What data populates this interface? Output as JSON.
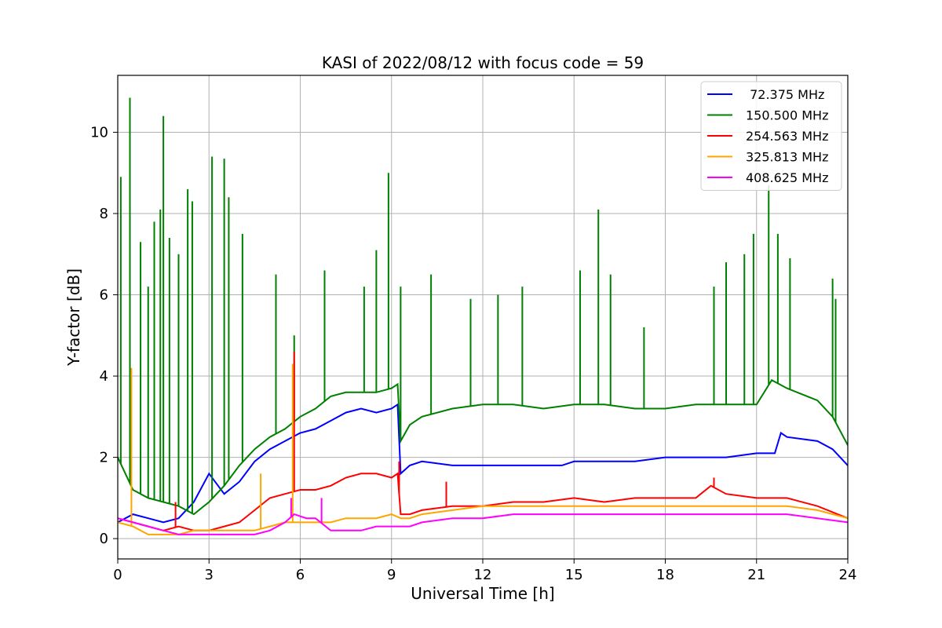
{
  "chart_data": {
    "type": "line",
    "title": "KASI of 2022/08/12 with focus code = 59",
    "xlabel": "Universal Time [h]",
    "ylabel": "Y-factor [dB]",
    "xlim": [
      0,
      24
    ],
    "ylim": [
      -0.5,
      11.4
    ],
    "xticks": [
      0,
      3,
      6,
      9,
      12,
      15,
      18,
      21,
      24
    ],
    "yticks": [
      0,
      2,
      4,
      6,
      8,
      10
    ],
    "grid": true,
    "legend_position": "top-right",
    "series": [
      {
        "name": " 72.375 MHz",
        "color": "#0000ff",
        "x": [
          0,
          0.5,
          1,
          1.5,
          2,
          2.5,
          3,
          3.5,
          4,
          4.5,
          5,
          5.5,
          6,
          6.5,
          7,
          7.5,
          8,
          8.5,
          9,
          9.2,
          9.3,
          9.6,
          10,
          11,
          12,
          13,
          14,
          14.6,
          15,
          16,
          17,
          18,
          19,
          20,
          21,
          21.6,
          21.8,
          22,
          23,
          23.5,
          24
        ],
        "y": [
          0.4,
          0.6,
          0.5,
          0.4,
          0.5,
          0.9,
          1.6,
          1.1,
          1.4,
          1.9,
          2.2,
          2.4,
          2.6,
          2.7,
          2.9,
          3.1,
          3.2,
          3.1,
          3.2,
          3.3,
          1.6,
          1.8,
          1.9,
          1.8,
          1.8,
          1.8,
          1.8,
          1.8,
          1.9,
          1.9,
          1.9,
          2.0,
          2.0,
          2.0,
          2.1,
          2.1,
          2.6,
          2.5,
          2.4,
          2.2,
          1.8
        ]
      },
      {
        "name": "150.500 MHz",
        "color": "#008000",
        "x": [
          0,
          0.5,
          1,
          1.5,
          2,
          2.5,
          3,
          3.5,
          4,
          4.5,
          5,
          5.5,
          6,
          6.5,
          7,
          7.5,
          8,
          8.5,
          9,
          9.2,
          9.3,
          9.6,
          10,
          11,
          12,
          13,
          14,
          15,
          16,
          17,
          18,
          19,
          20,
          21,
          21.5,
          22,
          23,
          23.5,
          24
        ],
        "y": [
          2.0,
          1.2,
          1.0,
          0.9,
          0.8,
          0.6,
          0.9,
          1.3,
          1.8,
          2.2,
          2.5,
          2.7,
          3.0,
          3.2,
          3.5,
          3.6,
          3.6,
          3.6,
          3.7,
          3.8,
          2.4,
          2.8,
          3.0,
          3.2,
          3.3,
          3.3,
          3.2,
          3.3,
          3.3,
          3.2,
          3.2,
          3.3,
          3.3,
          3.3,
          3.9,
          3.7,
          3.4,
          3.0,
          2.3
        ],
        "spikes": [
          {
            "x": 0.1,
            "y": 8.9
          },
          {
            "x": 0.4,
            "y": 10.85
          },
          {
            "x": 0.75,
            "y": 7.3
          },
          {
            "x": 1.0,
            "y": 6.2
          },
          {
            "x": 1.2,
            "y": 7.8
          },
          {
            "x": 1.4,
            "y": 8.1
          },
          {
            "x": 1.5,
            "y": 10.4
          },
          {
            "x": 1.7,
            "y": 7.4
          },
          {
            "x": 2.0,
            "y": 7.0
          },
          {
            "x": 2.3,
            "y": 8.6
          },
          {
            "x": 2.45,
            "y": 8.3
          },
          {
            "x": 3.1,
            "y": 9.4
          },
          {
            "x": 3.5,
            "y": 9.35
          },
          {
            "x": 3.65,
            "y": 8.4
          },
          {
            "x": 4.1,
            "y": 7.5
          },
          {
            "x": 5.2,
            "y": 6.5
          },
          {
            "x": 5.8,
            "y": 5.0
          },
          {
            "x": 6.8,
            "y": 6.6
          },
          {
            "x": 8.1,
            "y": 6.2
          },
          {
            "x": 8.5,
            "y": 7.1
          },
          {
            "x": 8.9,
            "y": 9.0
          },
          {
            "x": 9.3,
            "y": 6.2
          },
          {
            "x": 10.3,
            "y": 6.5
          },
          {
            "x": 11.6,
            "y": 5.9
          },
          {
            "x": 12.5,
            "y": 6.0
          },
          {
            "x": 13.3,
            "y": 6.2
          },
          {
            "x": 15.2,
            "y": 6.6
          },
          {
            "x": 15.8,
            "y": 8.1
          },
          {
            "x": 16.2,
            "y": 6.5
          },
          {
            "x": 17.3,
            "y": 5.2
          },
          {
            "x": 19.6,
            "y": 6.2
          },
          {
            "x": 20.0,
            "y": 6.8
          },
          {
            "x": 20.6,
            "y": 7.0
          },
          {
            "x": 20.9,
            "y": 7.5
          },
          {
            "x": 21.4,
            "y": 8.7
          },
          {
            "x": 21.7,
            "y": 7.5
          },
          {
            "x": 22.1,
            "y": 6.9
          },
          {
            "x": 23.5,
            "y": 6.4
          },
          {
            "x": 23.6,
            "y": 5.9
          }
        ]
      },
      {
        "name": "254.563 MHz",
        "color": "#ff0000",
        "x": [
          0,
          0.5,
          1,
          1.5,
          2,
          2.5,
          3,
          3.5,
          4,
          4.5,
          5,
          5.5,
          6,
          6.5,
          7,
          7.5,
          8,
          8.5,
          9,
          9.2,
          9.3,
          9.6,
          10,
          11,
          12,
          13,
          14,
          15,
          16,
          17,
          18,
          19,
          19.5,
          20,
          21,
          22,
          23,
          24
        ],
        "y": [
          0.5,
          0.4,
          0.3,
          0.2,
          0.3,
          0.2,
          0.2,
          0.3,
          0.4,
          0.7,
          1.0,
          1.1,
          1.2,
          1.2,
          1.3,
          1.5,
          1.6,
          1.6,
          1.5,
          1.6,
          0.6,
          0.6,
          0.7,
          0.8,
          0.8,
          0.9,
          0.9,
          1.0,
          0.9,
          1.0,
          1.0,
          1.0,
          1.3,
          1.1,
          1.0,
          1.0,
          0.8,
          0.5
        ],
        "spikes": [
          {
            "x": 1.9,
            "y": 0.9
          },
          {
            "x": 5.8,
            "y": 4.6
          },
          {
            "x": 9.25,
            "y": 1.9
          },
          {
            "x": 10.8,
            "y": 1.4
          },
          {
            "x": 19.6,
            "y": 1.5
          }
        ]
      },
      {
        "name": "325.813 MHz",
        "color": "#ffa500",
        "x": [
          0,
          0.5,
          1,
          1.5,
          2,
          2.5,
          3,
          3.5,
          4,
          4.5,
          5,
          5.5,
          6,
          6.5,
          7,
          7.5,
          8,
          8.5,
          9,
          9.3,
          9.6,
          10,
          11,
          12,
          13,
          14,
          15,
          16,
          17,
          18,
          19,
          20,
          21,
          22,
          23,
          24
        ],
        "y": [
          0.4,
          0.3,
          0.1,
          0.1,
          0.1,
          0.2,
          0.2,
          0.2,
          0.2,
          0.2,
          0.3,
          0.4,
          0.4,
          0.4,
          0.4,
          0.5,
          0.5,
          0.5,
          0.6,
          0.5,
          0.5,
          0.6,
          0.7,
          0.8,
          0.8,
          0.8,
          0.8,
          0.8,
          0.8,
          0.8,
          0.8,
          0.8,
          0.8,
          0.8,
          0.7,
          0.5
        ],
        "spikes": [
          {
            "x": 0.45,
            "y": 4.2
          },
          {
            "x": 4.7,
            "y": 1.6
          },
          {
            "x": 5.75,
            "y": 4.3
          }
        ]
      },
      {
        "name": "408.625 MHz",
        "color": "#ff00ff",
        "x": [
          0,
          0.5,
          1,
          1.5,
          2,
          2.5,
          3,
          3.5,
          4,
          4.5,
          5,
          5.5,
          5.8,
          6.2,
          6.5,
          7,
          7.5,
          8,
          8.5,
          9,
          9.3,
          9.6,
          10,
          11,
          12,
          13,
          14,
          15,
          16,
          17,
          18,
          19,
          20,
          21,
          22,
          23,
          24
        ],
        "y": [
          0.5,
          0.4,
          0.3,
          0.2,
          0.1,
          0.1,
          0.1,
          0.1,
          0.1,
          0.1,
          0.2,
          0.4,
          0.6,
          0.5,
          0.5,
          0.2,
          0.2,
          0.2,
          0.3,
          0.3,
          0.3,
          0.3,
          0.4,
          0.5,
          0.5,
          0.6,
          0.6,
          0.6,
          0.6,
          0.6,
          0.6,
          0.6,
          0.6,
          0.6,
          0.6,
          0.5,
          0.4
        ],
        "spikes": [
          {
            "x": 5.7,
            "y": 1.0
          },
          {
            "x": 6.7,
            "y": 1.0
          }
        ]
      }
    ]
  }
}
